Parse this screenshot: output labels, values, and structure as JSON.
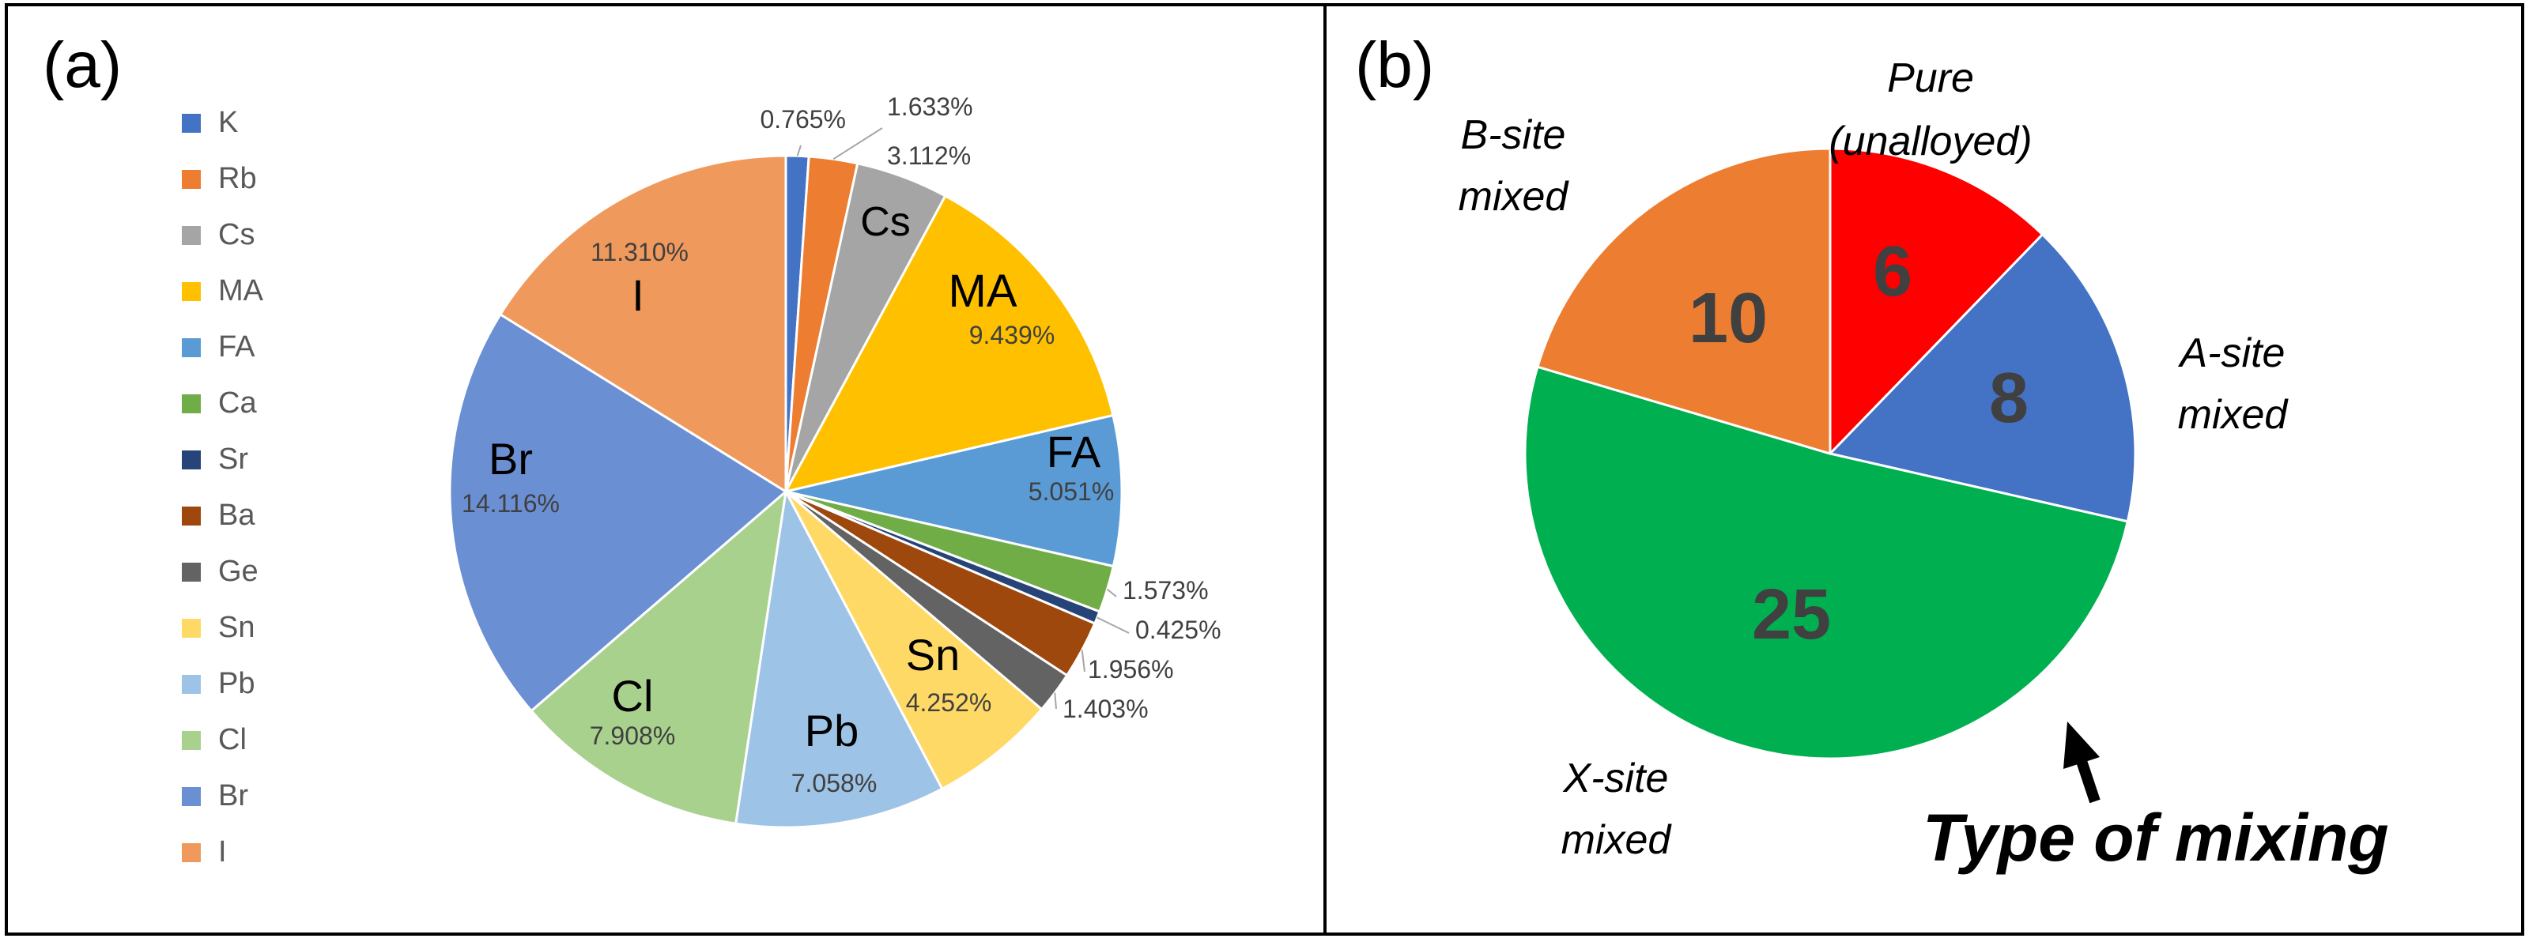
{
  "panel_a": {
    "label": "(a)"
  },
  "panel_b": {
    "label": "(b)",
    "caption": "Type of mixing"
  },
  "chart_data": [
    {
      "type": "pie",
      "title": "",
      "legend_position": "left",
      "slices": [
        {
          "name": "K",
          "value": 0.765,
          "pct_label": "0.765%",
          "color": "#4472C4"
        },
        {
          "name": "Rb",
          "value": 1.633,
          "pct_label": "1.633%",
          "color": "#ED7D31"
        },
        {
          "name": "Cs",
          "value": 3.112,
          "pct_label": "3.112%",
          "color": "#A5A5A5",
          "inner_label": "Cs"
        },
        {
          "name": "MA",
          "value": 9.439,
          "pct_label": "9.439%",
          "color": "#FFC000",
          "inner_label": "MA"
        },
        {
          "name": "FA",
          "value": 5.051,
          "pct_label": "5.051%",
          "color": "#5B9BD5",
          "inner_label": "FA"
        },
        {
          "name": "Ca",
          "value": 1.573,
          "pct_label": "1.573%",
          "color": "#70AD47"
        },
        {
          "name": "Sr",
          "value": 0.425,
          "pct_label": "0.425%",
          "color": "#264478"
        },
        {
          "name": "Ba",
          "value": 1.956,
          "pct_label": "1.956%",
          "color": "#9E480E"
        },
        {
          "name": "Ge",
          "value": 1.403,
          "pct_label": "1.403%",
          "color": "#636363"
        },
        {
          "name": "Sn",
          "value": 4.252,
          "pct_label": "4.252%",
          "color": "#FFD966",
          "inner_label": "Sn"
        },
        {
          "name": "Pb",
          "value": 7.058,
          "pct_label": "7.058%",
          "color": "#9DC3E6",
          "inner_label": "Pb"
        },
        {
          "name": "Cl",
          "value": 7.908,
          "pct_label": "7.908%",
          "color": "#A9D18E",
          "inner_label": "Cl"
        },
        {
          "name": "Br",
          "value": 14.116,
          "pct_label": "14.116%",
          "color": "#6A8FD3",
          "inner_label": "Br"
        },
        {
          "name": "I",
          "value": 11.31,
          "pct_label": "11.310%",
          "color": "#F0995C",
          "inner_label": "I"
        }
      ]
    },
    {
      "type": "pie",
      "title": "",
      "slices": [
        {
          "name": "Pure (unalloyed)",
          "line1": "Pure",
          "line2": "(unalloyed)",
          "value": 6,
          "color": "#FF0000"
        },
        {
          "name": "A-site mixed",
          "line1": "A-site",
          "line2": "mixed",
          "value": 8,
          "color": "#4472C4"
        },
        {
          "name": "X-site mixed",
          "line1": "X-site",
          "line2": "mixed",
          "value": 25,
          "color": "#00B050"
        },
        {
          "name": "B-site mixed",
          "line1": "B-site",
          "line2": "mixed",
          "value": 10,
          "color": "#ED7D31"
        }
      ]
    }
  ]
}
